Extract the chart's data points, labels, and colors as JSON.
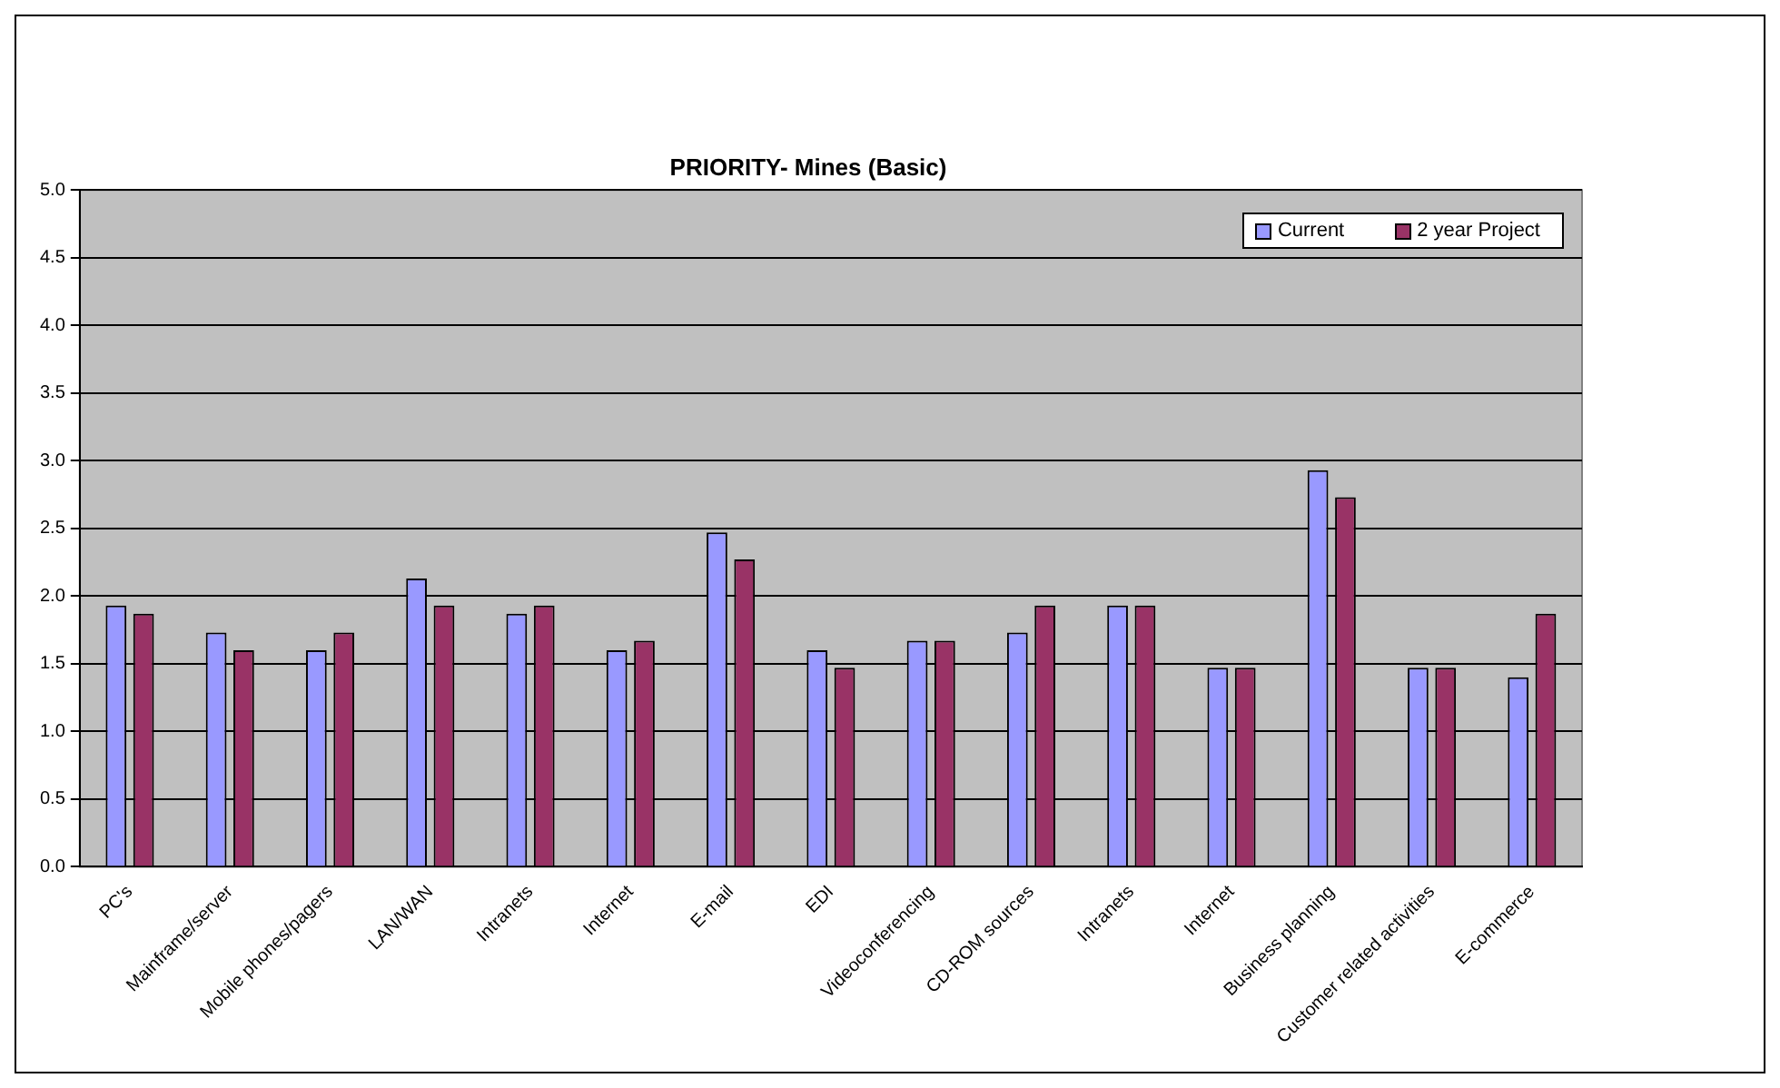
{
  "chart_data": {
    "type": "bar",
    "title": "PRIORITY- Mines (Basic)",
    "categories": [
      "PC's",
      "Mainframe/server",
      "Mobile phones/pagers",
      "LAN/WAN",
      "Intranets",
      "Internet",
      "E-mail",
      "EDI",
      "Videoconferencing",
      "CD-ROM sources",
      "Intranets",
      "Internet",
      "Business planning",
      "Customer related activities",
      "E-commerce"
    ],
    "series": [
      {
        "name": "Current",
        "color": "#9999ff",
        "values": [
          1.93,
          1.73,
          1.6,
          2.13,
          1.87,
          1.6,
          2.47,
          1.6,
          1.67,
          1.73,
          1.93,
          1.47,
          2.93,
          1.47,
          1.4
        ]
      },
      {
        "name": "2 year Project",
        "color": "#993366",
        "values": [
          1.87,
          1.6,
          1.73,
          1.93,
          1.93,
          1.67,
          2.27,
          1.47,
          1.67,
          1.93,
          1.93,
          1.47,
          2.73,
          1.47,
          1.87
        ]
      }
    ],
    "ylim": [
      0,
      5
    ],
    "yticks": [
      {
        "value": 0,
        "label": "0.0"
      },
      {
        "value": 0.5,
        "label": "0.5"
      },
      {
        "value": 1,
        "label": "1.0"
      },
      {
        "value": 1.5,
        "label": "1.5"
      },
      {
        "value": 2,
        "label": "2.0"
      },
      {
        "value": 2.5,
        "label": "2.5"
      },
      {
        "value": 3,
        "label": "3.0"
      },
      {
        "value": 3.5,
        "label": "3.5"
      },
      {
        "value": 4,
        "label": "4.0"
      },
      {
        "value": 4.5,
        "label": "4.5"
      },
      {
        "value": 5,
        "label": "5.0"
      }
    ],
    "grid": "y",
    "legend": "top right"
  }
}
